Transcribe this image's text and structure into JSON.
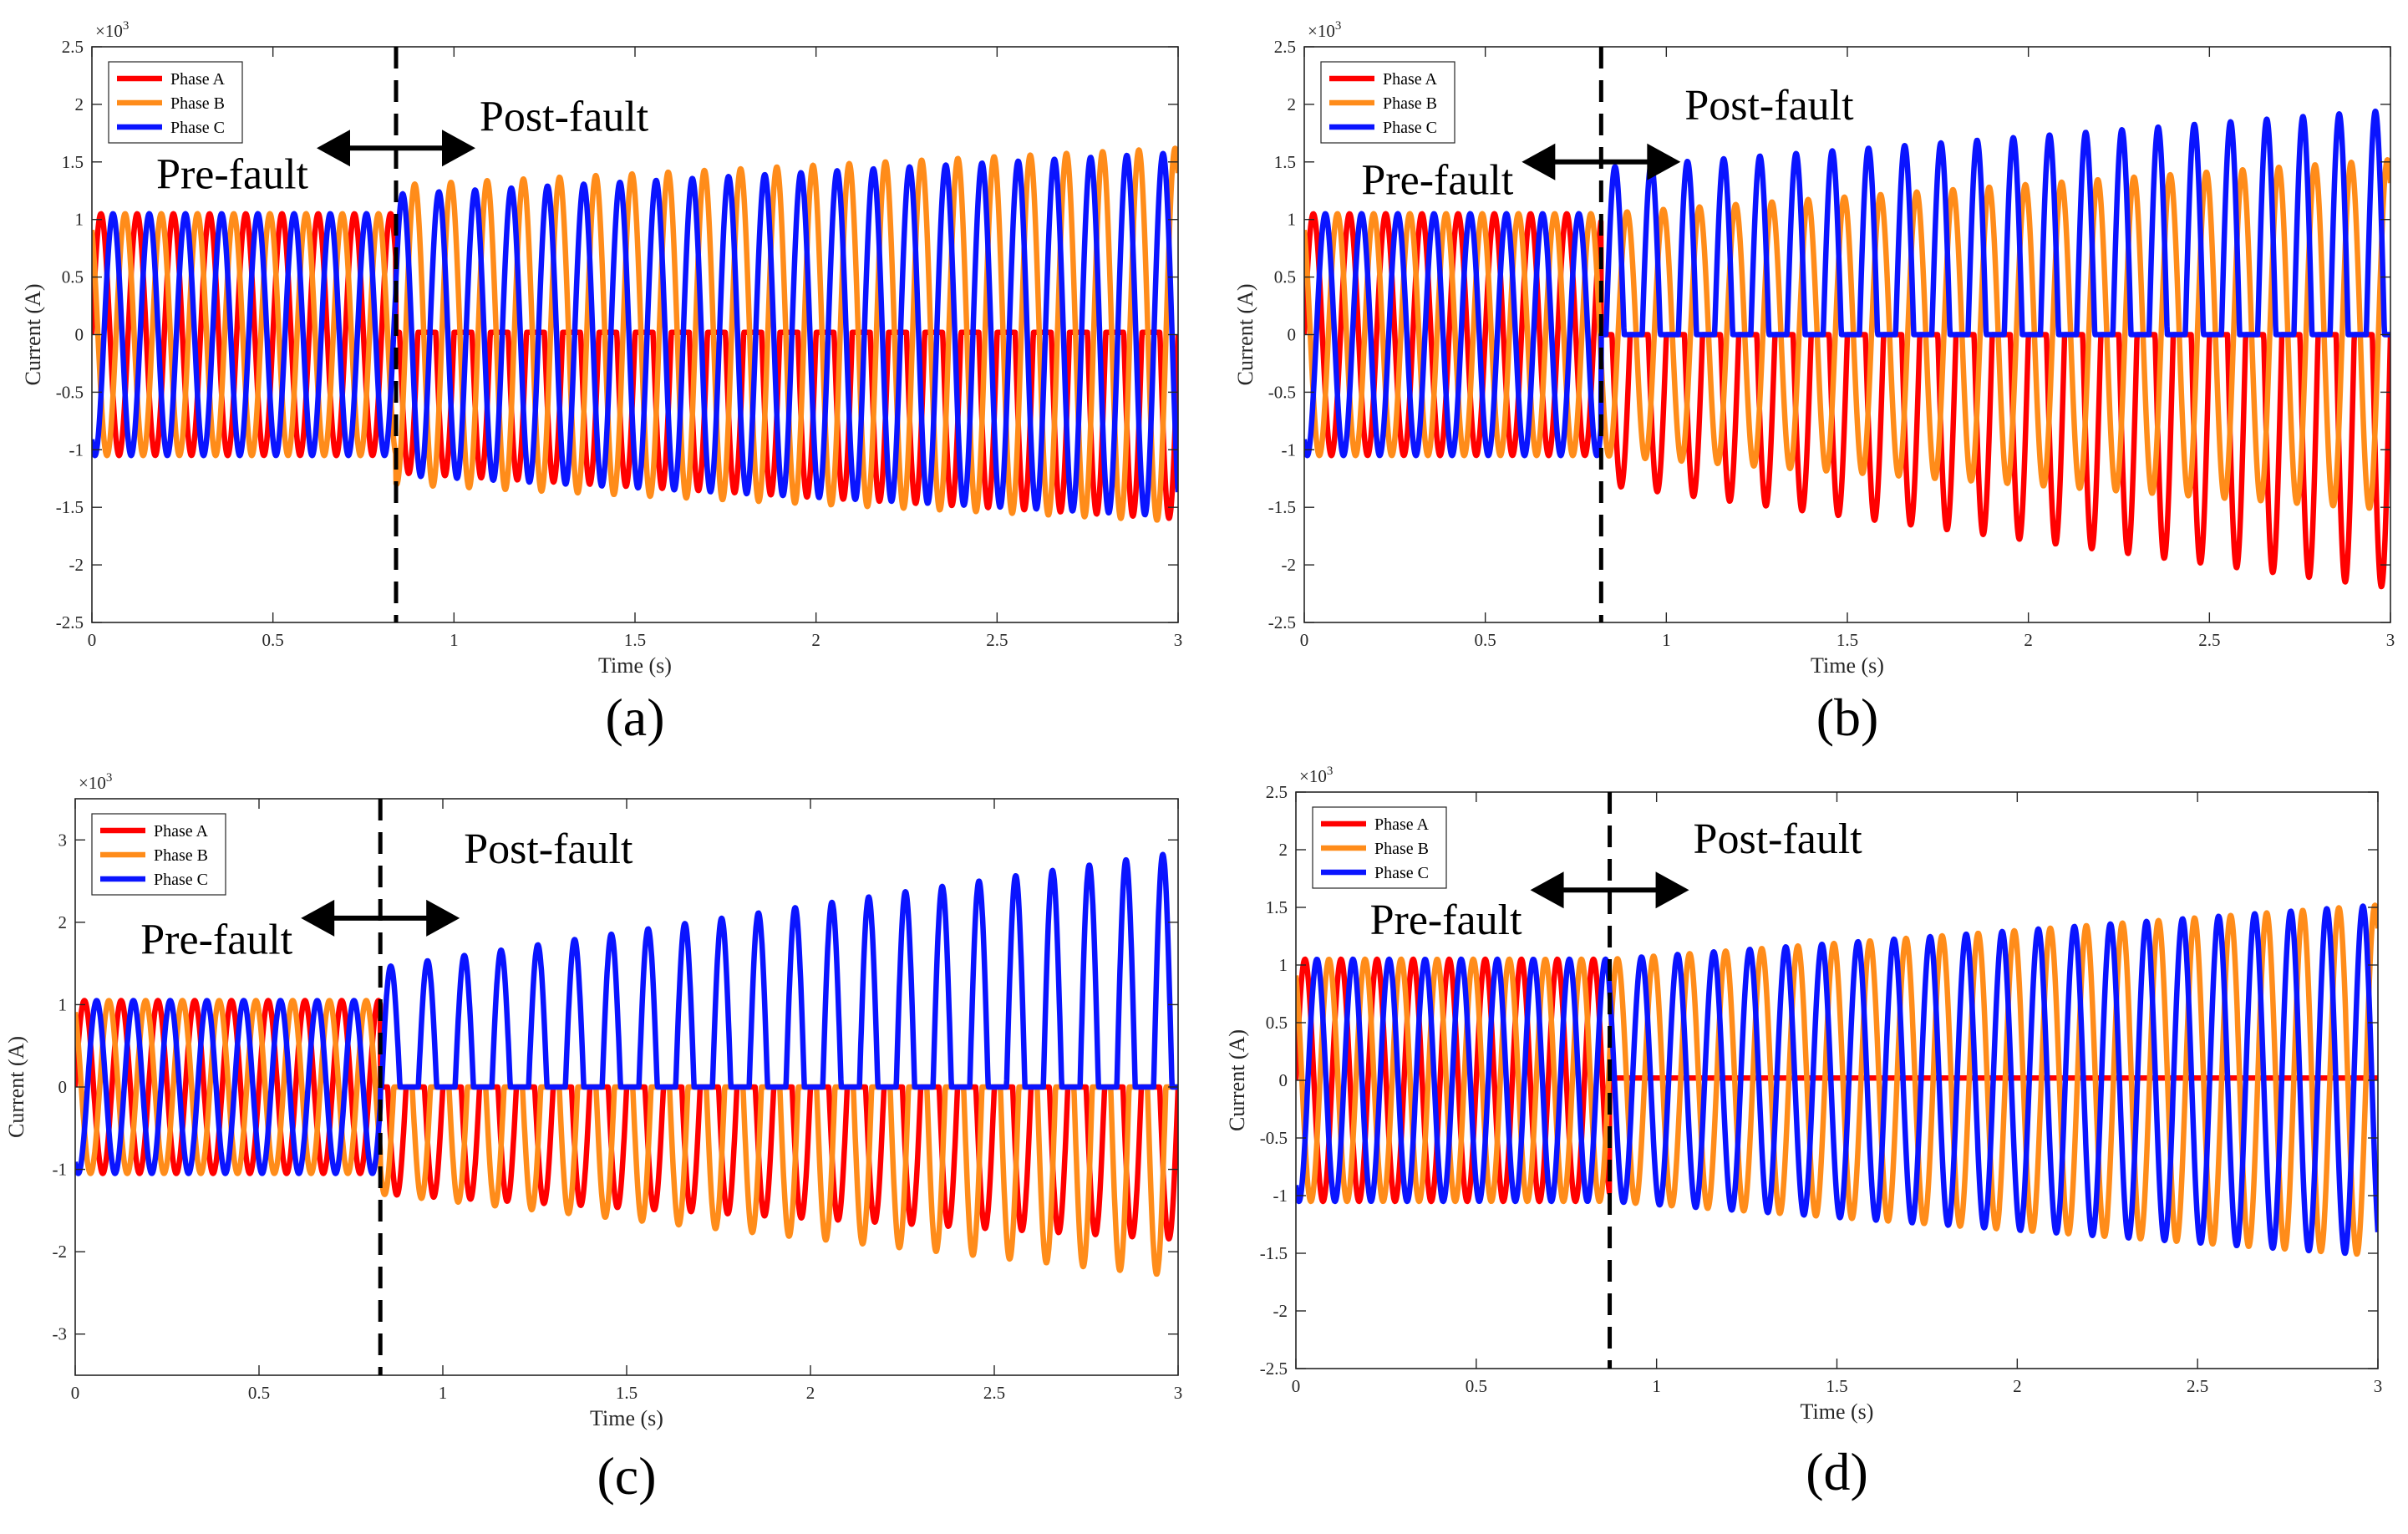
{
  "chart_data": [
    {
      "type": "line",
      "caption": "(a)",
      "title": "",
      "xlabel": "Time (s)",
      "ylabel": "Current (A)",
      "y_scale_label": "×10",
      "y_scale_exp": "3",
      "xlim": [
        0,
        3
      ],
      "ylim": [
        -2.5,
        2.5
      ],
      "xticks": [
        0,
        0.5,
        1,
        1.5,
        2,
        2.5,
        3
      ],
      "xtick_labels": [
        "0",
        "0.5",
        "1",
        "1.5",
        "2",
        "2.5",
        "3"
      ],
      "yticks": [
        -2.5,
        -2,
        -1.5,
        -1,
        -0.5,
        0,
        0.5,
        1,
        1.5,
        2,
        2.5
      ],
      "ytick_labels": [
        "-2.5",
        "-2",
        "-1.5",
        "-1",
        "-0.5",
        "0",
        "0.5",
        "1",
        "1.5",
        "2",
        "2.5"
      ],
      "fault_time": 0.84,
      "annotations": {
        "pre": "Pre-fault",
        "post": "Post-fault"
      },
      "annotation_y": {
        "pre": 1.4,
        "post": 1.9,
        "arrow": 1.62
      },
      "legend": [
        "Phase A",
        "Phase B",
        "Phase C"
      ],
      "frequency_hz": 10,
      "pre_amplitude": 1.05,
      "series": [
        {
          "name": "Phase A",
          "color": "#ff0000",
          "phase_deg": 0,
          "post": "zero_top_neg",
          "post_amp_start": 1.2,
          "post_amp_end": 1.6
        },
        {
          "name": "Phase B",
          "color": "#ff8c1a",
          "phase_deg": 120,
          "post": "full",
          "post_amp_start": 1.3,
          "post_amp_end": 1.62
        },
        {
          "name": "Phase C",
          "color": "#0a14ff",
          "phase_deg": -120,
          "post": "full",
          "post_amp_start": 1.22,
          "post_amp_end": 1.58
        }
      ]
    },
    {
      "type": "line",
      "caption": "(b)",
      "title": "",
      "xlabel": "Time (s)",
      "ylabel": "Current (A)",
      "y_scale_label": "×10",
      "y_scale_exp": "3",
      "xlim": [
        0,
        3
      ],
      "ylim": [
        -2.5,
        2.5
      ],
      "xticks": [
        0,
        0.5,
        1,
        1.5,
        2,
        2.5,
        3
      ],
      "xtick_labels": [
        "0",
        "0.5",
        "1",
        "1.5",
        "2",
        "2.5",
        "3"
      ],
      "yticks": [
        -2.5,
        -2,
        -1.5,
        -1,
        -0.5,
        0,
        0.5,
        1,
        1.5,
        2,
        2.5
      ],
      "ytick_labels": [
        "-2.5",
        "-2",
        "-1.5",
        "-1",
        "-0.5",
        "0",
        "0.5",
        "1",
        "1.5",
        "2",
        "2.5"
      ],
      "fault_time": 0.82,
      "annotations": {
        "pre": "Pre-fault",
        "post": "Post-fault"
      },
      "annotation_y": {
        "pre": 1.35,
        "post": 2.0,
        "arrow": 1.5
      },
      "legend": [
        "Phase A",
        "Phase B",
        "Phase C"
      ],
      "frequency_hz": 10,
      "pre_amplitude": 1.05,
      "series": [
        {
          "name": "Phase A",
          "color": "#ff0000",
          "phase_deg": 0,
          "post": "neg_only",
          "post_amp_start": 1.3,
          "post_amp_end": 2.2
        },
        {
          "name": "Phase B",
          "color": "#ff8c1a",
          "phase_deg": 120,
          "post": "full",
          "post_amp_start": 1.05,
          "post_amp_end": 1.52
        },
        {
          "name": "Phase C",
          "color": "#0a14ff",
          "phase_deg": -120,
          "post": "pos_only",
          "post_amp_start": 1.45,
          "post_amp_end": 1.95
        }
      ]
    },
    {
      "type": "line",
      "caption": "(c)",
      "title": "",
      "xlabel": "Time (s)",
      "ylabel": "Current (A)",
      "y_scale_label": "×10",
      "y_scale_exp": "3",
      "xlim": [
        0,
        3
      ],
      "ylim": [
        -3.5,
        3.5
      ],
      "xticks": [
        0,
        0.5,
        1,
        1.5,
        2,
        2.5,
        3
      ],
      "xtick_labels": [
        "0",
        "0.5",
        "1",
        "1.5",
        "2",
        "2.5",
        "3"
      ],
      "yticks": [
        -3,
        -2,
        -1,
        0,
        1,
        2,
        3
      ],
      "ytick_labels": [
        "-3",
        "-2",
        "-1",
        "0",
        "1",
        "2",
        "3"
      ],
      "fault_time": 0.83,
      "annotations": {
        "pre": "Pre-fault",
        "post": "Post-fault"
      },
      "annotation_y": {
        "pre": 1.8,
        "post": 2.9,
        "arrow": 2.05
      },
      "legend": [
        "Phase A",
        "Phase B",
        "Phase C"
      ],
      "frequency_hz": 10,
      "pre_amplitude": 1.05,
      "series": [
        {
          "name": "Phase A",
          "color": "#ff0000",
          "phase_deg": 0,
          "post": "neg_only",
          "post_amp_start": 1.3,
          "post_amp_end": 1.85
        },
        {
          "name": "Phase B",
          "color": "#ff8c1a",
          "phase_deg": 120,
          "post": "neg_only",
          "post_amp_start": 1.3,
          "post_amp_end": 2.3
        },
        {
          "name": "Phase C",
          "color": "#0a14ff",
          "phase_deg": -120,
          "post": "pos_only",
          "post_amp_start": 1.45,
          "post_amp_end": 2.85
        }
      ]
    },
    {
      "type": "line",
      "caption": "(d)",
      "title": "",
      "xlabel": "Time (s)",
      "ylabel": "Current (A)",
      "y_scale_label": "×10",
      "y_scale_exp": "3",
      "xlim": [
        0,
        3
      ],
      "ylim": [
        -2.5,
        2.5
      ],
      "xticks": [
        0,
        0.5,
        1,
        1.5,
        2,
        2.5,
        3
      ],
      "xtick_labels": [
        "0",
        "0.5",
        "1",
        "1.5",
        "2",
        "2.5",
        "3"
      ],
      "yticks": [
        -2.5,
        -2,
        -1.5,
        -1,
        -0.5,
        0,
        0.5,
        1,
        1.5,
        2,
        2.5
      ],
      "ytick_labels": [
        "-2.5",
        "-2",
        "-1.5",
        "-1",
        "-0.5",
        "0",
        "0.5",
        "1",
        "1.5",
        "2",
        "2.5"
      ],
      "fault_time": 0.87,
      "annotations": {
        "pre": "Pre-fault",
        "post": "Post-fault"
      },
      "annotation_y": {
        "pre": 1.4,
        "post": 2.1,
        "arrow": 1.65
      },
      "legend": [
        "Phase A",
        "Phase B",
        "Phase C"
      ],
      "frequency_hz": 10,
      "pre_amplitude": 1.05,
      "series": [
        {
          "name": "Phase A",
          "color": "#ff0000",
          "phase_deg": 0,
          "post": "flat",
          "post_amp_start": 0,
          "post_amp_end": 0
        },
        {
          "name": "Phase B",
          "color": "#ff8c1a",
          "phase_deg": 120,
          "post": "full",
          "post_amp_start": 1.05,
          "post_amp_end": 1.52
        },
        {
          "name": "Phase C",
          "color": "#0a14ff",
          "phase_deg": -120,
          "post": "full",
          "post_amp_start": 1.05,
          "post_amp_end": 1.52
        }
      ]
    }
  ]
}
